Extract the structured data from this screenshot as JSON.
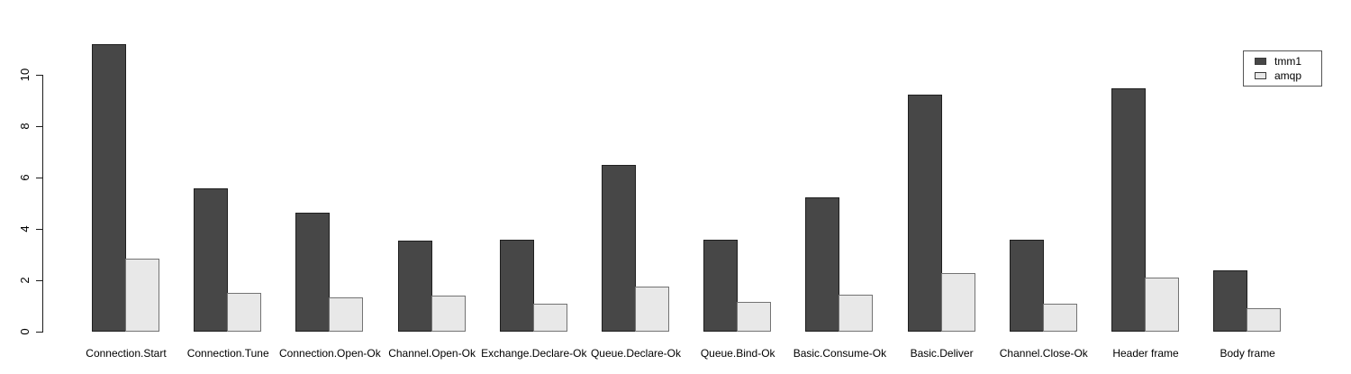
{
  "background": "#ffffff",
  "axis_color": "#1c1c1c",
  "text_color": "#000000",
  "chart_data": {
    "type": "bar",
    "title": "",
    "xlabel": "",
    "ylabel": "",
    "categories": [
      "Connection.Start",
      "Connection.Tune",
      "Connection.Open-Ok",
      "Channel.Open-Ok",
      "Exchange.Declare-Ok",
      "Queue.Declare-Ok",
      "Queue.Bind-Ok",
      "Basic.Consume-Ok",
      "Basic.Deliver",
      "Channel.Close-Ok",
      "Header frame",
      "Body frame"
    ],
    "series": [
      {
        "name": "tmm1",
        "color": "#474747",
        "border": "#1f1f1f",
        "values": [
          11.2,
          5.6,
          4.65,
          3.55,
          3.6,
          6.5,
          3.6,
          5.25,
          9.25,
          3.6,
          9.5,
          2.4
        ]
      },
      {
        "name": "amqp",
        "color": "#e8e8e8",
        "border": "#737373",
        "values": [
          2.85,
          1.5,
          1.35,
          1.4,
          1.1,
          1.75,
          1.15,
          1.45,
          2.3,
          1.1,
          2.1,
          0.9
        ]
      }
    ],
    "yticks": [
      0,
      2,
      4,
      6,
      8,
      10
    ],
    "ylim": [
      0,
      11.7
    ],
    "grid": false,
    "legend_position": "top-right",
    "legend": [
      "tmm1",
      "amqp"
    ]
  }
}
